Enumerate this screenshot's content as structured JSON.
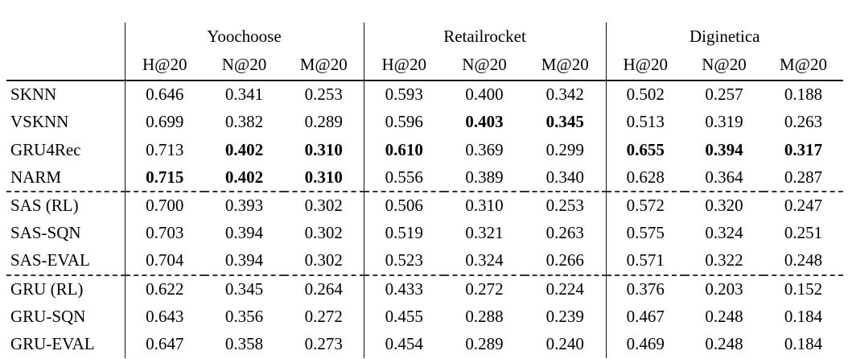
{
  "table": {
    "groups": [
      {
        "label": "Yoochoose"
      },
      {
        "label": "Retailrocket"
      },
      {
        "label": "Diginetica"
      }
    ],
    "metrics": [
      "H@20",
      "N@20",
      "M@20"
    ],
    "rows": [
      {
        "label": "SKNN",
        "values": [
          "0.646",
          "0.341",
          "0.253",
          "0.593",
          "0.400",
          "0.342",
          "0.502",
          "0.257",
          "0.188"
        ],
        "bold": [],
        "dashed_above": false
      },
      {
        "label": "VSKNN",
        "values": [
          "0.699",
          "0.382",
          "0.289",
          "0.596",
          "0.403",
          "0.345",
          "0.513",
          "0.319",
          "0.263"
        ],
        "bold": [
          4,
          5
        ],
        "dashed_above": false
      },
      {
        "label": "GRU4Rec",
        "values": [
          "0.713",
          "0.402",
          "0.310",
          "0.610",
          "0.369",
          "0.299",
          "0.655",
          "0.394",
          "0.317"
        ],
        "bold": [
          1,
          2,
          3,
          6,
          7,
          8
        ],
        "dashed_above": false
      },
      {
        "label": "NARM",
        "values": [
          "0.715",
          "0.402",
          "0.310",
          "0.556",
          "0.389",
          "0.340",
          "0.628",
          "0.364",
          "0.287"
        ],
        "bold": [
          0,
          1,
          2
        ],
        "dashed_above": false
      },
      {
        "label": "SAS (RL)",
        "values": [
          "0.700",
          "0.393",
          "0.302",
          "0.506",
          "0.310",
          "0.253",
          "0.572",
          "0.320",
          "0.247"
        ],
        "bold": [],
        "dashed_above": true
      },
      {
        "label": "SAS-SQN",
        "values": [
          "0.703",
          "0.394",
          "0.302",
          "0.519",
          "0.321",
          "0.263",
          "0.575",
          "0.324",
          "0.251"
        ],
        "bold": [],
        "dashed_above": false
      },
      {
        "label": "SAS-EVAL",
        "values": [
          "0.704",
          "0.394",
          "0.302",
          "0.523",
          "0.324",
          "0.266",
          "0.571",
          "0.322",
          "0.248"
        ],
        "bold": [],
        "dashed_above": false
      },
      {
        "label": "GRU (RL)",
        "values": [
          "0.622",
          "0.345",
          "0.264",
          "0.433",
          "0.272",
          "0.224",
          "0.376",
          "0.203",
          "0.152"
        ],
        "bold": [],
        "dashed_above": true
      },
      {
        "label": "GRU-SQN",
        "values": [
          "0.643",
          "0.356",
          "0.272",
          "0.455",
          "0.288",
          "0.239",
          "0.467",
          "0.248",
          "0.184"
        ],
        "bold": [],
        "dashed_above": false
      },
      {
        "label": "GRU-EVAL",
        "values": [
          "0.647",
          "0.358",
          "0.273",
          "0.454",
          "0.289",
          "0.240",
          "0.469",
          "0.248",
          "0.184"
        ],
        "bold": [],
        "dashed_above": false
      }
    ]
  }
}
